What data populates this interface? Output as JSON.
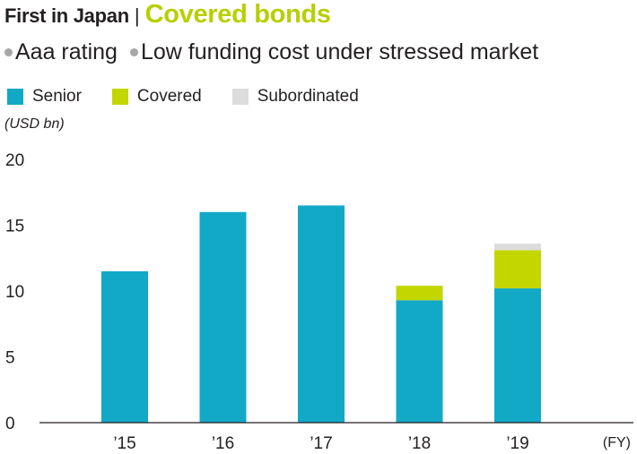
{
  "header": {
    "lead": "First in Japan",
    "separator": "|",
    "title": "Covered bonds"
  },
  "subtitle": {
    "items": [
      "Aaa rating",
      "Low funding cost under stressed market"
    ]
  },
  "colors": {
    "senior": "#12a9c6",
    "covered": "#c3d600",
    "subordinated": "#dcdcdc",
    "title_accent": "#b7cf00",
    "axis": "#231f20"
  },
  "chart_data": {
    "type": "bar",
    "stacked": true,
    "categories": [
      "’15",
      "’16",
      "’17",
      "’18",
      "’19"
    ],
    "series": [
      {
        "name": "Senior",
        "values": [
          11.5,
          16.0,
          16.5,
          9.3,
          10.2
        ]
      },
      {
        "name": "Covered",
        "values": [
          0,
          0,
          0,
          1.1,
          2.9
        ]
      },
      {
        "name": "Subordinated",
        "values": [
          0,
          0,
          0,
          0,
          0.5
        ]
      }
    ],
    "ylim": [
      0,
      20
    ],
    "yticks": [
      0,
      5,
      10,
      15,
      20
    ],
    "ylabel": "(USD bn)",
    "xlabel": "(FY)",
    "legend": "top-left",
    "grid": false
  }
}
